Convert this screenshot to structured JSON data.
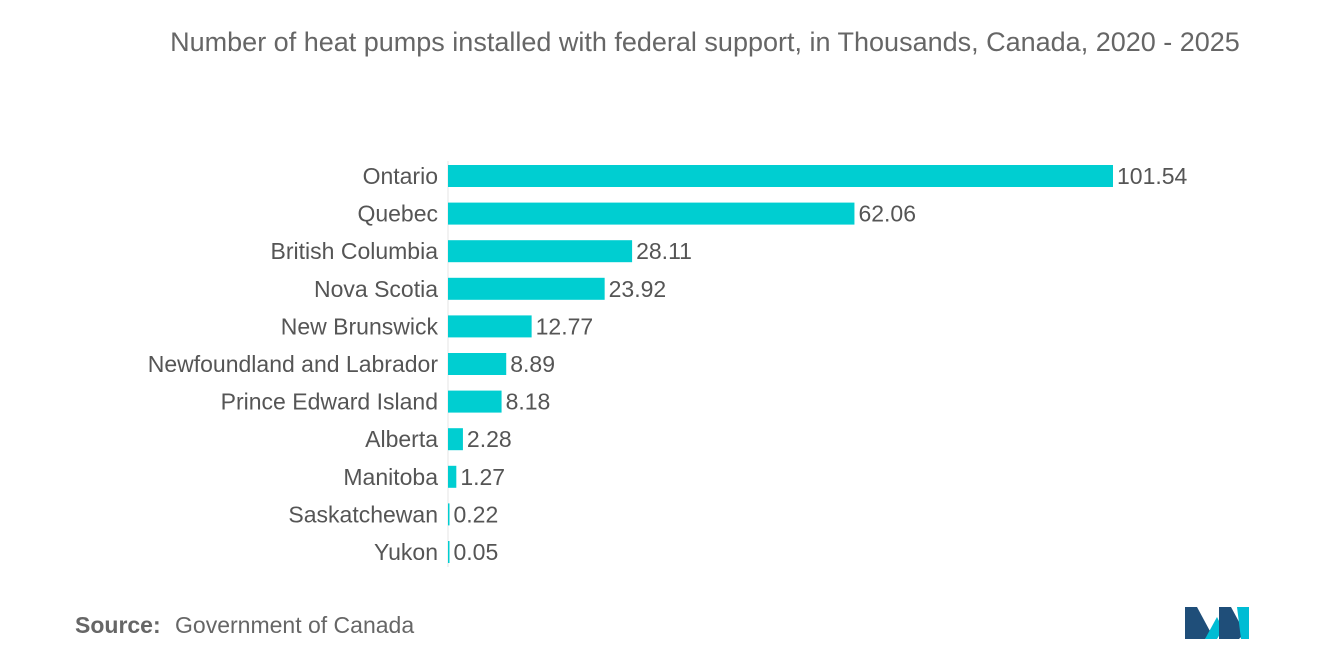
{
  "chart_data": {
    "type": "bar",
    "orientation": "horizontal",
    "title": "Number of heat pumps installed with federal support, in Thousands, Canada, 2020 - 2025",
    "xlabel": "",
    "ylabel": "",
    "categories": [
      "Ontario",
      "Quebec",
      "British Columbia",
      "Nova Scotia",
      "New Brunswick",
      "Newfoundland and Labrador",
      "Prince Edward Island",
      "Alberta",
      "Manitoba",
      "Saskatchewan",
      "Yukon"
    ],
    "values": [
      101.54,
      62.06,
      28.11,
      23.92,
      12.77,
      8.89,
      8.18,
      2.28,
      1.27,
      0.22,
      0.05
    ],
    "value_labels": [
      "101.54",
      "62.06",
      "28.11",
      "23.92",
      "12.77",
      "8.89",
      "8.18",
      "2.28",
      "1.27",
      "0.22",
      "0.05"
    ],
    "xlim": [
      0,
      101.54
    ],
    "grid": false,
    "legend": "none",
    "bar_color": "#00CED1"
  },
  "footer": {
    "source_label": "Source:",
    "source_text": "Government of Canada"
  },
  "colors": {
    "bar": "#00CED1",
    "text": "#555555",
    "logo_dark": "#1F4E79",
    "logo_teal": "#00BCD4"
  }
}
